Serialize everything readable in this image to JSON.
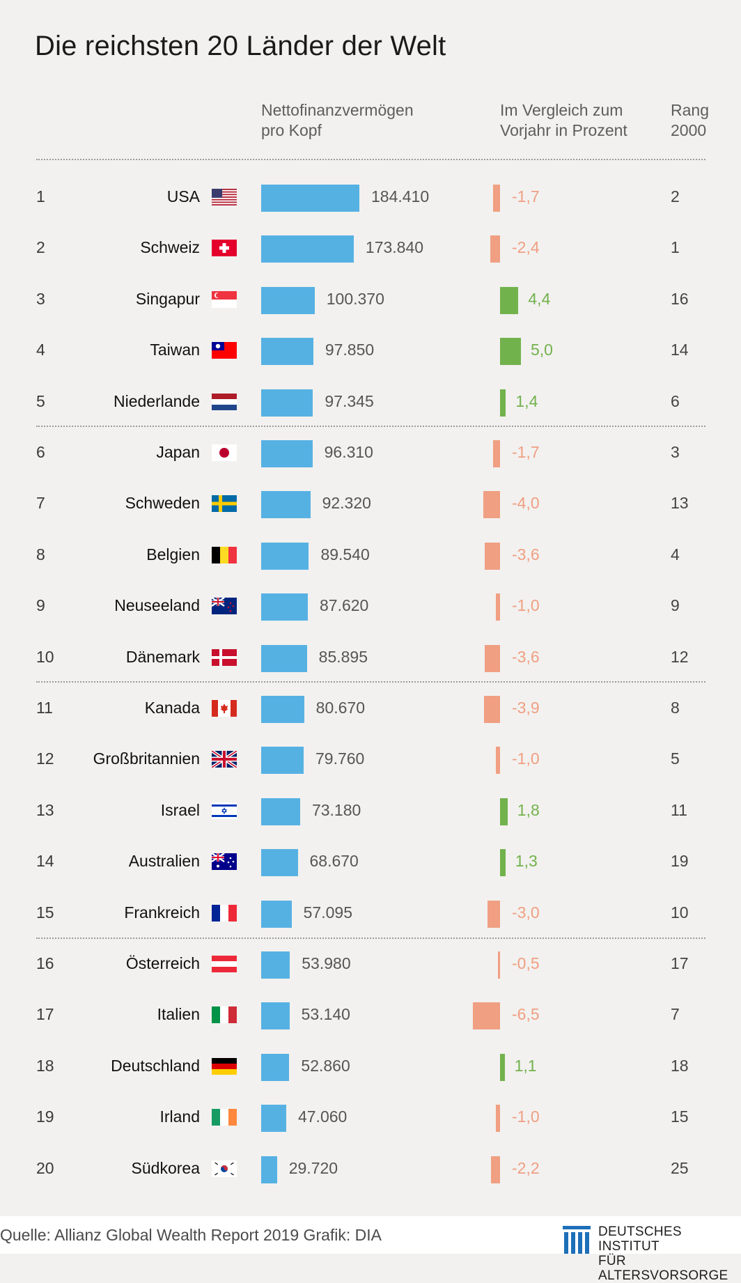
{
  "title": "Die reichsten 20 Länder der Welt",
  "headers": {
    "wealth": [
      "Nettofinanzvermögen",
      "pro Kopf"
    ],
    "change": [
      "Im Vergleich zum",
      "Vorjahr in Prozent"
    ],
    "rank2000": [
      "Rang",
      "2000"
    ]
  },
  "colors": {
    "bar": "#56b1e3",
    "positive": "#72b24d",
    "negative": "#f09f82",
    "background": "#f2f1ef"
  },
  "chart_data": {
    "type": "bar",
    "title": "Die reichsten 20 Länder der Welt",
    "categories": [
      "USA",
      "Schweiz",
      "Singapur",
      "Taiwan",
      "Niederlande",
      "Japan",
      "Schweden",
      "Belgien",
      "Neuseeland",
      "Dänemark",
      "Kanada",
      "Großbritannien",
      "Israel",
      "Australien",
      "Frankreich",
      "Österreich",
      "Italien",
      "Deutschland",
      "Irland",
      "Südkorea"
    ],
    "series": [
      {
        "name": "Nettofinanzvermögen pro Kopf",
        "values": [
          184410,
          173840,
          100370,
          97850,
          97345,
          96310,
          92320,
          89540,
          87620,
          85895,
          80670,
          79760,
          73180,
          68670,
          57095,
          53980,
          53140,
          52860,
          47060,
          29720
        ]
      },
      {
        "name": "Im Vergleich zum Vorjahr in Prozent",
        "values": [
          -1.7,
          -2.4,
          4.4,
          5.0,
          1.4,
          -1.7,
          -4.0,
          -3.6,
          -1.0,
          -3.6,
          -3.9,
          -1.0,
          1.8,
          1.3,
          -3.0,
          -0.5,
          -6.5,
          1.1,
          -1.0,
          -2.2
        ]
      }
    ],
    "rows": [
      {
        "rank": "1",
        "country": "USA",
        "flag": "usa-flag",
        "value": 184410,
        "value_label": "184.410",
        "change": -1.7,
        "change_label": "-1,7",
        "rank2000": "2"
      },
      {
        "rank": "2",
        "country": "Schweiz",
        "flag": "switzerland-flag",
        "value": 173840,
        "value_label": "173.840",
        "change": -2.4,
        "change_label": "-2,4",
        "rank2000": "1"
      },
      {
        "rank": "3",
        "country": "Singapur",
        "flag": "singapore-flag",
        "value": 100370,
        "value_label": "100.370",
        "change": 4.4,
        "change_label": "4,4",
        "rank2000": "16"
      },
      {
        "rank": "4",
        "country": "Taiwan",
        "flag": "taiwan-flag",
        "value": 97850,
        "value_label": "97.850",
        "change": 5.0,
        "change_label": "5,0",
        "rank2000": "14"
      },
      {
        "rank": "5",
        "country": "Niederlande",
        "flag": "netherlands-flag",
        "value": 97345,
        "value_label": "97.345",
        "change": 1.4,
        "change_label": "1,4",
        "rank2000": "6"
      },
      {
        "rank": "6",
        "country": "Japan",
        "flag": "japan-flag",
        "value": 96310,
        "value_label": "96.310",
        "change": -1.7,
        "change_label": "-1,7",
        "rank2000": "3"
      },
      {
        "rank": "7",
        "country": "Schweden",
        "flag": "sweden-flag",
        "value": 92320,
        "value_label": "92.320",
        "change": -4.0,
        "change_label": "-4,0",
        "rank2000": "13"
      },
      {
        "rank": "8",
        "country": "Belgien",
        "flag": "belgium-flag",
        "value": 89540,
        "value_label": "89.540",
        "change": -3.6,
        "change_label": "-3,6",
        "rank2000": "4"
      },
      {
        "rank": "9",
        "country": "Neuseeland",
        "flag": "new-zealand-flag",
        "value": 87620,
        "value_label": "87.620",
        "change": -1.0,
        "change_label": "-1,0",
        "rank2000": "9"
      },
      {
        "rank": "10",
        "country": "Dänemark",
        "flag": "denmark-flag",
        "value": 85895,
        "value_label": "85.895",
        "change": -3.6,
        "change_label": "-3,6",
        "rank2000": "12"
      },
      {
        "rank": "11",
        "country": "Kanada",
        "flag": "canada-flag",
        "value": 80670,
        "value_label": "80.670",
        "change": -3.9,
        "change_label": "-3,9",
        "rank2000": "8"
      },
      {
        "rank": "12",
        "country": "Großbritannien",
        "flag": "uk-flag",
        "value": 79760,
        "value_label": "79.760",
        "change": -1.0,
        "change_label": "-1,0",
        "rank2000": "5"
      },
      {
        "rank": "13",
        "country": "Israel",
        "flag": "israel-flag",
        "value": 73180,
        "value_label": "73.180",
        "change": 1.8,
        "change_label": "1,8",
        "rank2000": "11"
      },
      {
        "rank": "14",
        "country": "Australien",
        "flag": "australia-flag",
        "value": 68670,
        "value_label": "68.670",
        "change": 1.3,
        "change_label": "1,3",
        "rank2000": "19"
      },
      {
        "rank": "15",
        "country": "Frankreich",
        "flag": "france-flag",
        "value": 57095,
        "value_label": "57.095",
        "change": -3.0,
        "change_label": "-3,0",
        "rank2000": "10"
      },
      {
        "rank": "16",
        "country": "Österreich",
        "flag": "austria-flag",
        "value": 53980,
        "value_label": "53.980",
        "change": -0.5,
        "change_label": "-0,5",
        "rank2000": "17"
      },
      {
        "rank": "17",
        "country": "Italien",
        "flag": "italy-flag",
        "value": 53140,
        "value_label": "53.140",
        "change": -6.5,
        "change_label": "-6,5",
        "rank2000": "7"
      },
      {
        "rank": "18",
        "country": "Deutschland",
        "flag": "germany-flag",
        "value": 52860,
        "value_label": "52.860",
        "change": 1.1,
        "change_label": "1,1",
        "rank2000": "18"
      },
      {
        "rank": "19",
        "country": "Irland",
        "flag": "ireland-flag",
        "value": 47060,
        "value_label": "47.060",
        "change": -1.0,
        "change_label": "-1,0",
        "rank2000": "15"
      },
      {
        "rank": "20",
        "country": "Südkorea",
        "flag": "south-korea-flag",
        "value": 29720,
        "value_label": "29.720",
        "change": -2.2,
        "change_label": "-2,2",
        "rank2000": "25"
      }
    ]
  },
  "footer": {
    "source": "Quelle: Allianz Global Wealth Report 2019  Grafik: DIA",
    "logo_line1": "DEUTSCHES INSTITUT",
    "logo_line2": "FÜR ALTERSVORSORGE"
  }
}
